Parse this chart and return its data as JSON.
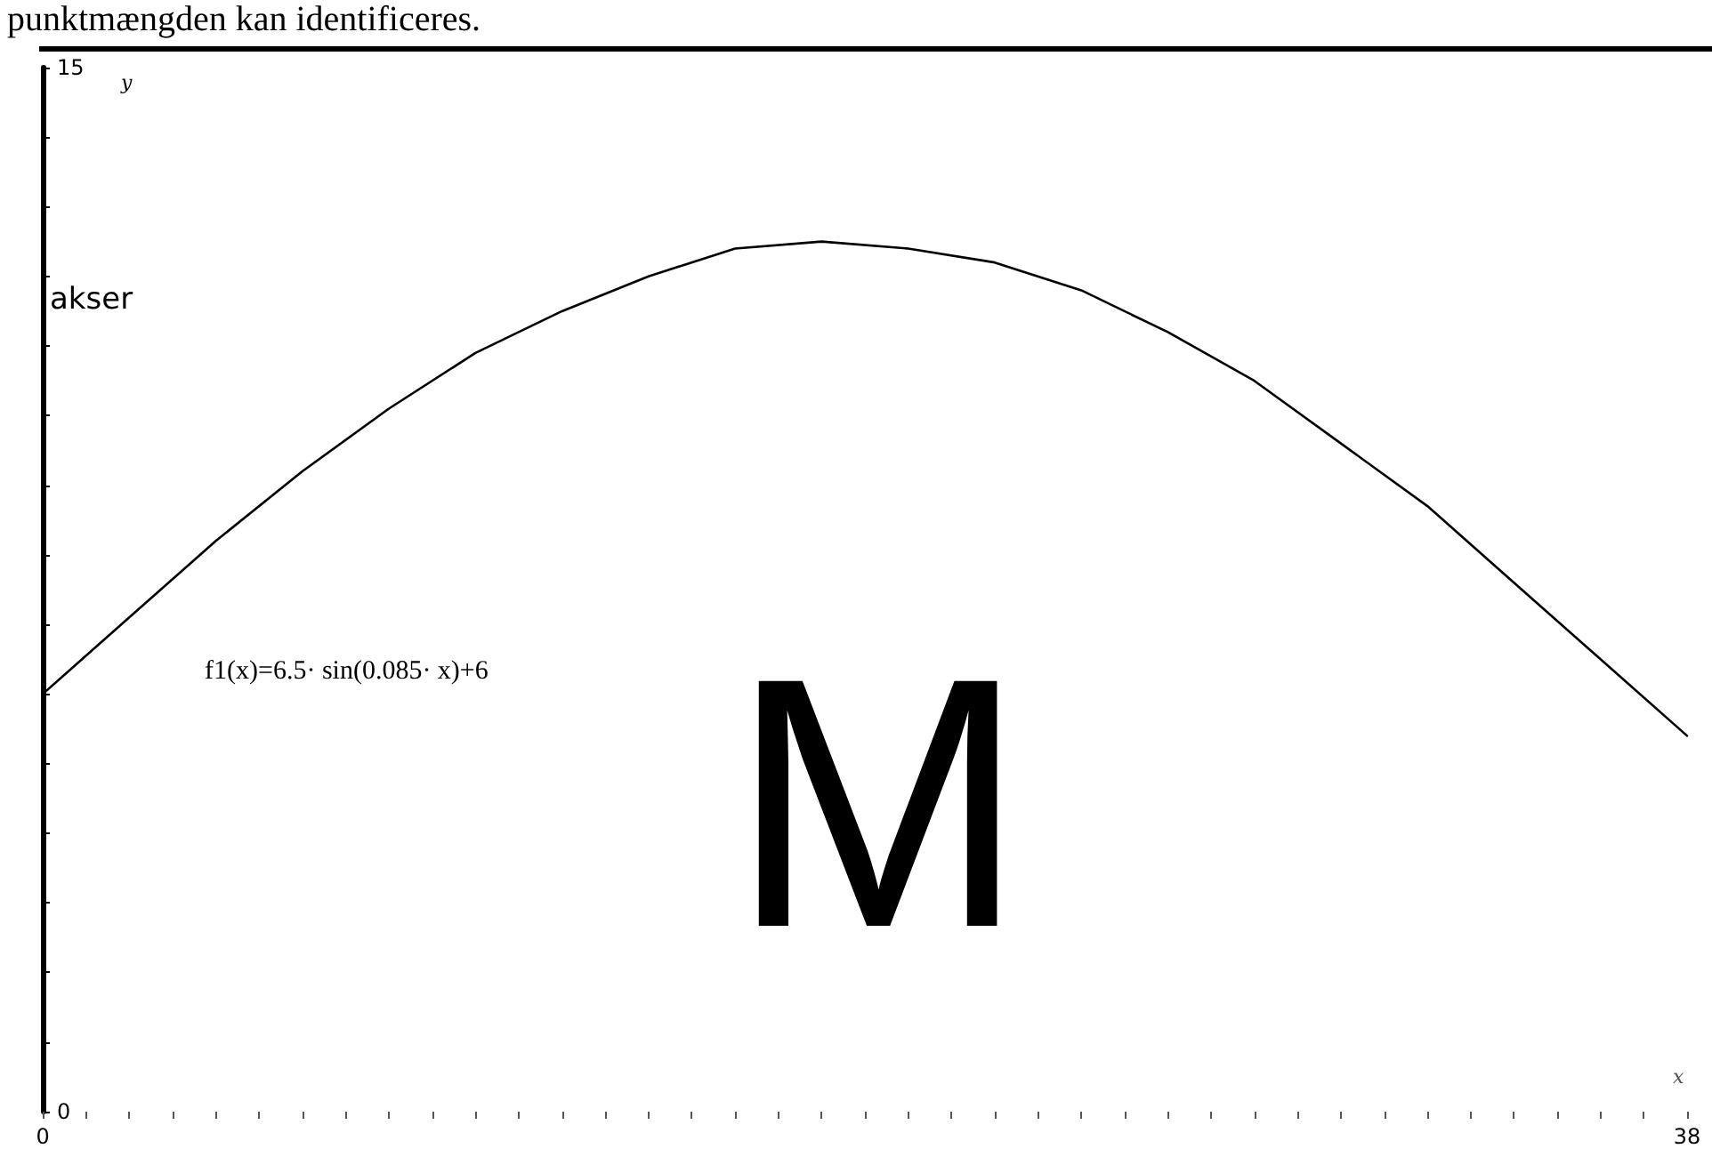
{
  "chart_data": {
    "type": "line",
    "xlabel": "x",
    "ylabel": "y",
    "annotations": [
      "punktmængden kan identificeres.",
      "akser",
      "f1(x)=6.5· sin(0.085· x)+6",
      "M"
    ],
    "x": [
      0,
      2,
      4,
      6,
      8,
      10,
      12,
      14,
      16,
      18,
      20,
      22,
      24,
      26,
      28,
      30,
      32,
      34,
      36,
      38
    ],
    "series": [
      {
        "color": "#000000",
        "values": [
          6.0,
          7.1,
          8.2,
          9.2,
          10.1,
          10.9,
          11.5,
          12.0,
          12.4,
          12.5,
          12.4,
          12.2,
          11.8,
          11.2,
          10.5,
          9.6,
          8.7,
          7.6,
          6.5,
          5.4
        ]
      }
    ],
    "xlim": [
      0,
      38
    ],
    "ylim": [
      0,
      15
    ],
    "xticks": [
      0,
      {
        "value": 1,
        "label": null
      },
      {
        "value": 2,
        "label": null
      },
      {
        "value": 3,
        "label": null
      },
      {
        "value": 4,
        "label": null
      },
      {
        "value": 5,
        "label": null
      },
      {
        "value": 6,
        "label": null
      },
      {
        "value": 7,
        "label": null
      },
      {
        "value": 8,
        "label": null
      },
      {
        "value": 9,
        "label": null
      },
      {
        "value": 10,
        "label": null
      },
      {
        "value": 11,
        "label": null
      },
      {
        "value": 12,
        "label": null
      },
      {
        "value": 13,
        "label": null
      },
      {
        "value": 14,
        "label": null
      },
      {
        "value": 15,
        "label": null
      },
      {
        "value": 16,
        "label": null
      },
      {
        "value": 17,
        "label": null
      },
      {
        "value": 18,
        "label": null
      },
      {
        "value": 19,
        "label": null
      },
      {
        "value": 20,
        "label": null
      },
      {
        "value": 21,
        "label": null
      },
      {
        "value": 22,
        "label": null
      },
      {
        "value": 23,
        "label": null
      },
      {
        "value": 24,
        "label": null
      },
      {
        "value": 25,
        "label": null
      },
      {
        "value": 26,
        "label": null
      },
      {
        "value": 27,
        "label": null
      },
      {
        "value": 28,
        "label": null
      },
      {
        "value": 29,
        "label": null
      },
      {
        "value": 30,
        "label": null
      },
      {
        "value": 31,
        "label": null
      },
      {
        "value": 32,
        "label": null
      },
      {
        "value": 33,
        "label": null
      },
      {
        "value": 34,
        "label": null
      },
      {
        "value": 35,
        "label": null
      },
      {
        "value": 36,
        "label": null
      },
      {
        "value": 37,
        "label": null
      },
      38
    ],
    "yticks": [
      0,
      {
        "value": 1,
        "label": null
      },
      {
        "value": 2,
        "label": null
      },
      {
        "value": 3,
        "label": null
      },
      {
        "value": 4,
        "label": null
      },
      {
        "value": 5,
        "label": null
      },
      {
        "value": 6,
        "label": null
      },
      {
        "value": 7,
        "label": null
      },
      {
        "value": 8,
        "label": null
      },
      {
        "value": 9,
        "label": null
      },
      {
        "value": 10,
        "label": null
      },
      {
        "value": 11,
        "label": null
      },
      {
        "value": 12,
        "label": null
      },
      {
        "value": 13,
        "label": null
      },
      {
        "value": 14,
        "label": null
      },
      15
    ],
    "grid": false,
    "marker": "none",
    "line_style": "solid"
  }
}
